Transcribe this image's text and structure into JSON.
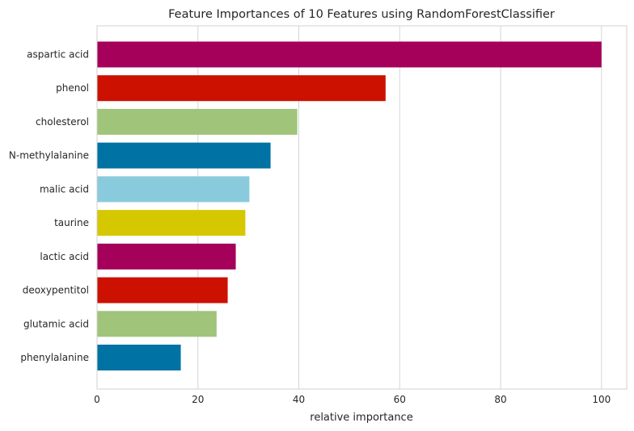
{
  "chart_data": {
    "type": "bar",
    "orientation": "horizontal",
    "title": "Feature Importances of 10 Features using RandomForestClassifier",
    "xlabel": "relative importance",
    "ylabel": "",
    "xlim": [
      0,
      105
    ],
    "xticks": [
      0,
      20,
      40,
      60,
      80,
      100
    ],
    "grid": "vertical",
    "categories": [
      "aspartic acid",
      "phenol",
      "cholesterol",
      "N-methylalanine",
      "malic acid",
      "taurine",
      "lactic acid",
      "deoxypentitol",
      "glutamic acid",
      "phenylalanine"
    ],
    "values": [
      100,
      57.2,
      39.7,
      34.4,
      30.2,
      29.4,
      27.5,
      25.9,
      23.7,
      16.6
    ],
    "colors": [
      "#a5005a",
      "#cc1100",
      "#a0c47a",
      "#0072a3",
      "#89cbdc",
      "#d6c800",
      "#a5005a",
      "#cc1100",
      "#a0c47a",
      "#0072a3"
    ]
  }
}
